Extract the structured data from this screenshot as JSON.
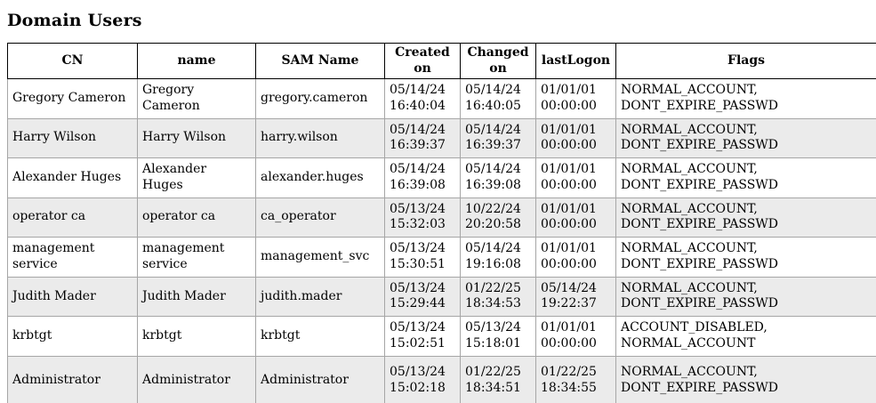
{
  "page": {
    "title": "Domain Users"
  },
  "colors": {
    "background": "#ffffff",
    "text": "#000000",
    "row_stripe": "#ebebeb",
    "header_border": "#000000",
    "cell_border": "#a6a6a6"
  },
  "table": {
    "columns": [
      {
        "key": "cn",
        "label": "CN"
      },
      {
        "key": "name",
        "label": "name"
      },
      {
        "key": "sam_name",
        "label": "SAM Name"
      },
      {
        "key": "created_on",
        "label": "Created on"
      },
      {
        "key": "changed_on",
        "label": "Changed\non"
      },
      {
        "key": "last_logon",
        "label": "lastLogon"
      },
      {
        "key": "flags",
        "label": "Flags"
      }
    ],
    "rows": [
      [
        "Gregory Cameron",
        "Gregory Cameron",
        "gregory.cameron",
        "05/14/24\n16:40:04",
        "05/14/24\n16:40:05",
        "01/01/01\n00:00:00",
        "NORMAL_ACCOUNT,\nDONT_EXPIRE_PASSWD"
      ],
      [
        "Harry Wilson",
        "Harry Wilson",
        "harry.wilson",
        "05/14/24\n16:39:37",
        "05/14/24\n16:39:37",
        "01/01/01\n00:00:00",
        "NORMAL_ACCOUNT,\nDONT_EXPIRE_PASSWD"
      ],
      [
        "Alexander Huges",
        "Alexander Huges",
        "alexander.huges",
        "05/14/24\n16:39:08",
        "05/14/24\n16:39:08",
        "01/01/01\n00:00:00",
        "NORMAL_ACCOUNT,\nDONT_EXPIRE_PASSWD"
      ],
      [
        "operator ca",
        "operator ca",
        "ca_operator",
        "05/13/24\n15:32:03",
        "10/22/24\n20:20:58",
        "01/01/01\n00:00:00",
        "NORMAL_ACCOUNT,\nDONT_EXPIRE_PASSWD"
      ],
      [
        "management\nservice",
        "management\nservice",
        "management_svc",
        "05/13/24\n15:30:51",
        "05/14/24\n19:16:08",
        "01/01/01\n00:00:00",
        "NORMAL_ACCOUNT,\nDONT_EXPIRE_PASSWD"
      ],
      [
        "Judith Mader",
        "Judith Mader",
        "judith.mader",
        "05/13/24\n15:29:44",
        "01/22/25\n18:34:53",
        "05/14/24\n19:22:37",
        "NORMAL_ACCOUNT,\nDONT_EXPIRE_PASSWD"
      ],
      [
        "krbtgt",
        "krbtgt",
        "krbtgt",
        "05/13/24\n15:02:51",
        "05/13/24\n15:18:01",
        "01/01/01\n00:00:00",
        "ACCOUNT_DISABLED,\nNORMAL_ACCOUNT"
      ],
      [
        "Administrator",
        "Administrator",
        "Administrator",
        "05/13/24\n15:02:18",
        "01/22/25\n18:34:51",
        "01/22/25\n18:34:55",
        "NORMAL_ACCOUNT,\nDONT_EXPIRE_PASSWD"
      ]
    ]
  }
}
